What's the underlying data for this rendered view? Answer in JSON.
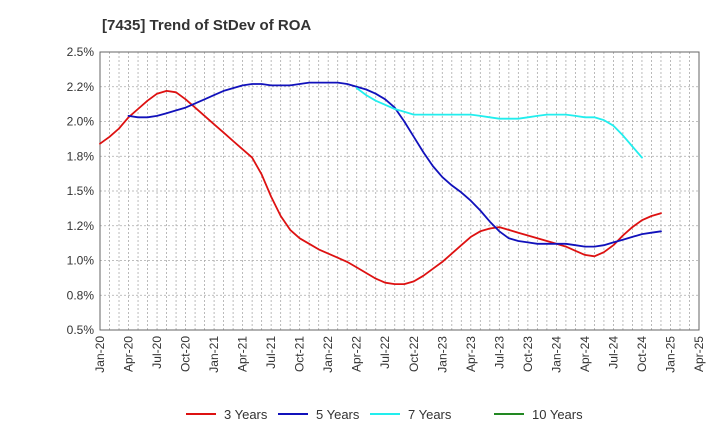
{
  "chart_data": {
    "type": "line",
    "title": "[7435]  Trend of StDev of ROA",
    "xlabel": "",
    "ylabel": "",
    "ylim": [
      0.5,
      2.5
    ],
    "y_ticks": [
      0.5,
      0.75,
      1.0,
      1.25,
      1.5,
      1.75,
      2.0,
      2.25,
      2.5
    ],
    "y_tick_labels": [
      "0.5%",
      "0.8%",
      "1.0%",
      "1.2%",
      "1.5%",
      "1.8%",
      "2.0%",
      "2.2%",
      "2.5%"
    ],
    "x_tick_labels": [
      "Jan-20",
      "Apr-20",
      "Jul-20",
      "Oct-20",
      "Jan-21",
      "Apr-21",
      "Jul-21",
      "Oct-21",
      "Jan-22",
      "Apr-22",
      "Jul-22",
      "Oct-22",
      "Jan-23",
      "Apr-23",
      "Jul-23",
      "Oct-23",
      "Jan-24",
      "Apr-24",
      "Jul-24",
      "Oct-24",
      "Jan-25",
      "Apr-25"
    ],
    "grid": true,
    "legend_position": "bottom",
    "series": [
      {
        "name": "3 Years",
        "color": "#dd1111",
        "points": [
          [
            0,
            1.84
          ],
          [
            1,
            1.89
          ],
          [
            2,
            1.95
          ],
          [
            3,
            2.03
          ],
          [
            4,
            2.09
          ],
          [
            5,
            2.15
          ],
          [
            6,
            2.2
          ],
          [
            7,
            2.22
          ],
          [
            8,
            2.21
          ],
          [
            9,
            2.16
          ],
          [
            10,
            2.1
          ],
          [
            11,
            2.04
          ],
          [
            12,
            1.98
          ],
          [
            13,
            1.92
          ],
          [
            14,
            1.86
          ],
          [
            15,
            1.8
          ],
          [
            16,
            1.74
          ],
          [
            17,
            1.62
          ],
          [
            18,
            1.46
          ],
          [
            19,
            1.32
          ],
          [
            20,
            1.22
          ],
          [
            21,
            1.16
          ],
          [
            22,
            1.12
          ],
          [
            23,
            1.08
          ],
          [
            24,
            1.05
          ],
          [
            25,
            1.02
          ],
          [
            26,
            0.99
          ],
          [
            27,
            0.95
          ],
          [
            28,
            0.91
          ],
          [
            29,
            0.87
          ],
          [
            30,
            0.84
          ],
          [
            31,
            0.83
          ],
          [
            32,
            0.83
          ],
          [
            33,
            0.85
          ],
          [
            34,
            0.89
          ],
          [
            35,
            0.94
          ],
          [
            36,
            0.99
          ],
          [
            37,
            1.05
          ],
          [
            38,
            1.11
          ],
          [
            39,
            1.17
          ],
          [
            40,
            1.21
          ],
          [
            41,
            1.23
          ],
          [
            42,
            1.24
          ],
          [
            43,
            1.22
          ],
          [
            44,
            1.2
          ],
          [
            45,
            1.18
          ],
          [
            46,
            1.16
          ],
          [
            47,
            1.14
          ],
          [
            48,
            1.12
          ],
          [
            49,
            1.1
          ],
          [
            50,
            1.07
          ],
          [
            51,
            1.04
          ],
          [
            52,
            1.03
          ],
          [
            53,
            1.06
          ],
          [
            54,
            1.11
          ],
          [
            55,
            1.18
          ],
          [
            56,
            1.24
          ],
          [
            57,
            1.29
          ],
          [
            58,
            1.32
          ],
          [
            59,
            1.34
          ]
        ]
      },
      {
        "name": "5 Years",
        "color": "#1111bb",
        "points": [
          [
            3,
            2.04
          ],
          [
            4,
            2.03
          ],
          [
            5,
            2.03
          ],
          [
            6,
            2.04
          ],
          [
            7,
            2.06
          ],
          [
            8,
            2.08
          ],
          [
            9,
            2.1
          ],
          [
            10,
            2.13
          ],
          [
            11,
            2.16
          ],
          [
            12,
            2.19
          ],
          [
            13,
            2.22
          ],
          [
            14,
            2.24
          ],
          [
            15,
            2.26
          ],
          [
            16,
            2.27
          ],
          [
            17,
            2.27
          ],
          [
            18,
            2.26
          ],
          [
            19,
            2.26
          ],
          [
            20,
            2.26
          ],
          [
            21,
            2.27
          ],
          [
            22,
            2.28
          ],
          [
            23,
            2.28
          ],
          [
            24,
            2.28
          ],
          [
            25,
            2.28
          ],
          [
            26,
            2.27
          ],
          [
            27,
            2.25
          ],
          [
            28,
            2.23
          ],
          [
            29,
            2.2
          ],
          [
            30,
            2.16
          ],
          [
            31,
            2.1
          ],
          [
            32,
            2.0
          ],
          [
            33,
            1.89
          ],
          [
            34,
            1.78
          ],
          [
            35,
            1.68
          ],
          [
            36,
            1.6
          ],
          [
            37,
            1.54
          ],
          [
            38,
            1.49
          ],
          [
            39,
            1.43
          ],
          [
            40,
            1.36
          ],
          [
            41,
            1.28
          ],
          [
            42,
            1.21
          ],
          [
            43,
            1.16
          ],
          [
            44,
            1.14
          ],
          [
            45,
            1.13
          ],
          [
            46,
            1.12
          ],
          [
            47,
            1.12
          ],
          [
            48,
            1.12
          ],
          [
            49,
            1.12
          ],
          [
            50,
            1.11
          ],
          [
            51,
            1.1
          ],
          [
            52,
            1.1
          ],
          [
            53,
            1.11
          ],
          [
            54,
            1.13
          ],
          [
            55,
            1.15
          ],
          [
            56,
            1.17
          ],
          [
            57,
            1.19
          ],
          [
            58,
            1.2
          ],
          [
            59,
            1.21
          ]
        ]
      },
      {
        "name": "7 Years",
        "color": "#22eeee",
        "points": [
          [
            27,
            2.24
          ],
          [
            28,
            2.19
          ],
          [
            29,
            2.15
          ],
          [
            30,
            2.12
          ],
          [
            31,
            2.09
          ],
          [
            32,
            2.07
          ],
          [
            33,
            2.05
          ],
          [
            34,
            2.05
          ],
          [
            35,
            2.05
          ],
          [
            36,
            2.05
          ],
          [
            37,
            2.05
          ],
          [
            38,
            2.05
          ],
          [
            39,
            2.05
          ],
          [
            40,
            2.04
          ],
          [
            41,
            2.03
          ],
          [
            42,
            2.02
          ],
          [
            43,
            2.02
          ],
          [
            44,
            2.02
          ],
          [
            45,
            2.03
          ],
          [
            46,
            2.04
          ],
          [
            47,
            2.05
          ],
          [
            48,
            2.05
          ],
          [
            49,
            2.05
          ],
          [
            50,
            2.04
          ],
          [
            51,
            2.03
          ],
          [
            52,
            2.03
          ],
          [
            53,
            2.01
          ],
          [
            54,
            1.97
          ],
          [
            55,
            1.9
          ],
          [
            56,
            1.82
          ],
          [
            57,
            1.74
          ]
        ]
      },
      {
        "name": "10 Years",
        "color": "#228822",
        "points": []
      }
    ]
  }
}
